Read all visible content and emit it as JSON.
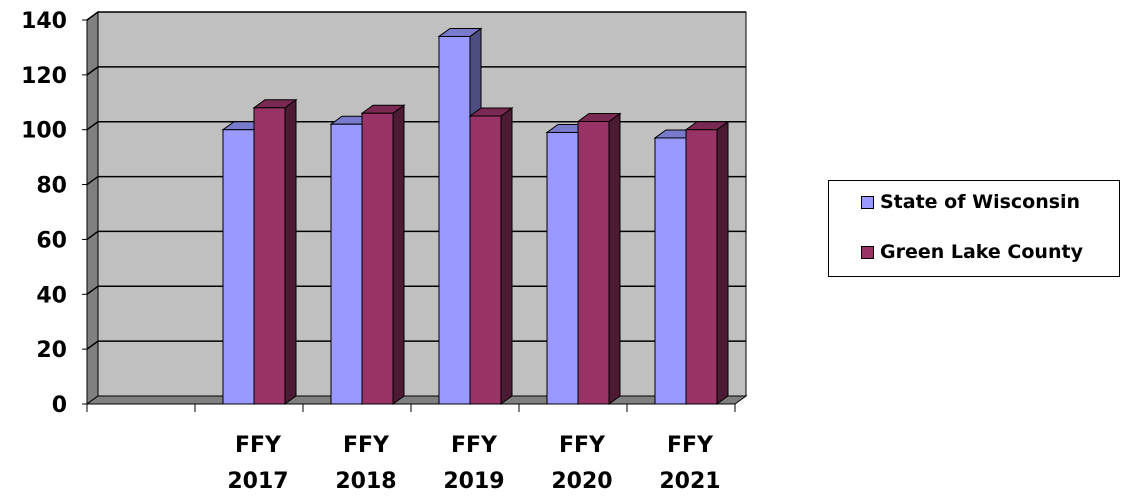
{
  "chart_data": {
    "type": "bar",
    "categories": [
      [
        "",
        ""
      ],
      [
        "FFY",
        "2017"
      ],
      [
        "FFY",
        "2018"
      ],
      [
        "FFY",
        "2019"
      ],
      [
        "FFY",
        "2020"
      ],
      [
        "FFY",
        "2021"
      ]
    ],
    "series": [
      {
        "name": "State of Wisconsin",
        "color": "#9999ff",
        "values": [
          null,
          100,
          102,
          134,
          99,
          97
        ]
      },
      {
        "name": "Green Lake County",
        "color": "#993366",
        "values": [
          null,
          108,
          106,
          105,
          103,
          100
        ]
      }
    ],
    "ylim": [
      0,
      140
    ],
    "yticks": [
      0,
      20,
      40,
      60,
      80,
      100,
      120,
      140
    ],
    "grid": true,
    "legend_position": "right",
    "plot_background": "#c0c0c0",
    "title": "",
    "xlabel": "",
    "ylabel": ""
  }
}
